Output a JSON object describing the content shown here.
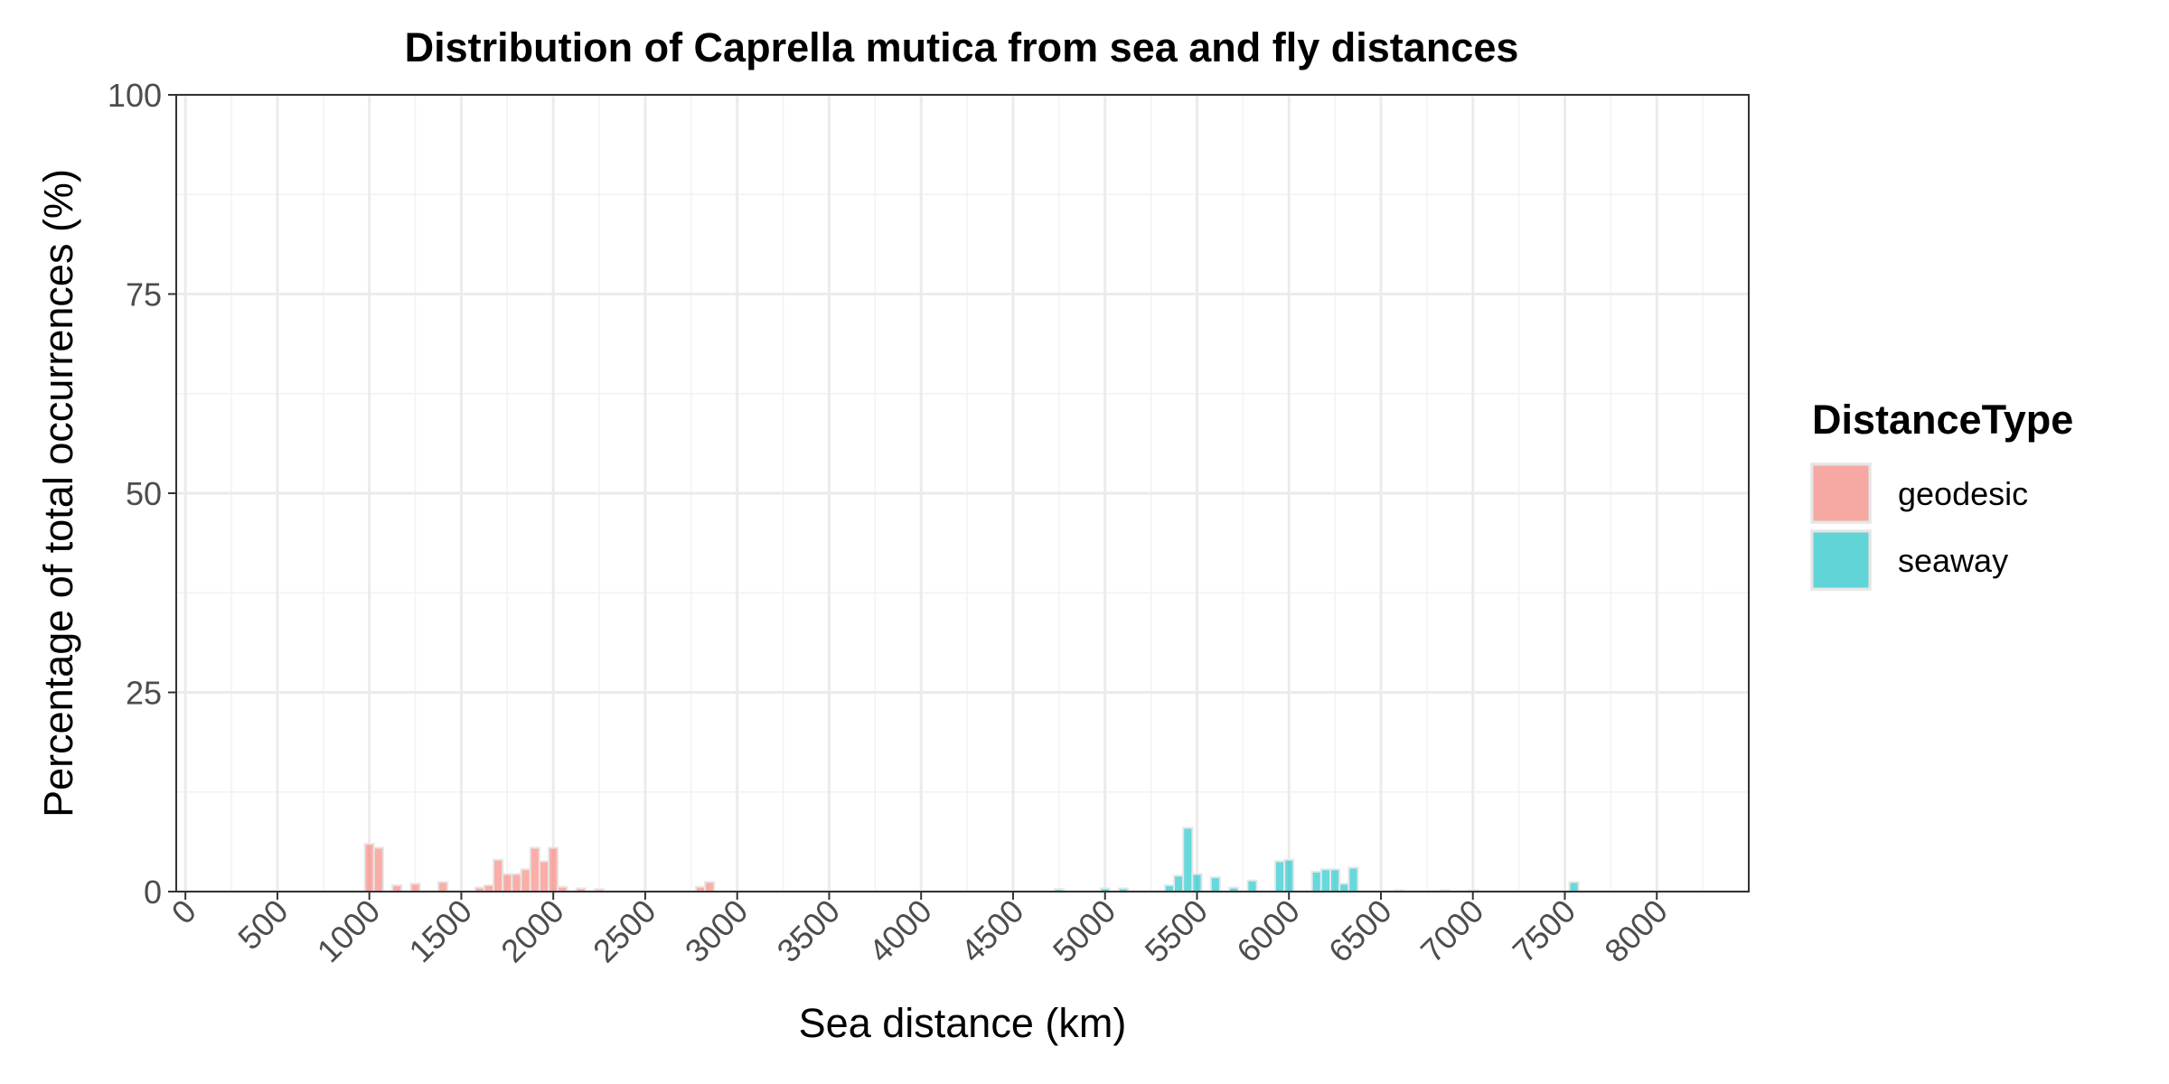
{
  "chart_data": {
    "type": "bar",
    "title": "Distribution of Caprella mutica from sea and fly distances",
    "xlabel": "Sea distance (km)",
    "ylabel": "Percentage of total occurrences (%)",
    "xlim": [
      0,
      8500
    ],
    "ylim": [
      0,
      100
    ],
    "bin_width": 50,
    "x_ticks": [
      "0",
      "500",
      "1000",
      "1500",
      "2000",
      "2500",
      "3000",
      "3500",
      "4000",
      "4500",
      "5000",
      "5500",
      "6000",
      "6500",
      "7000",
      "7500",
      "8000"
    ],
    "y_ticks": [
      "0",
      "25",
      "50",
      "75",
      "100"
    ],
    "grid": true,
    "legend_position": "right",
    "legend_title": "DistanceType",
    "series": [
      {
        "name": "geodesic",
        "color": "#f8766d",
        "x": [
          1000,
          1050,
          1150,
          1250,
          1400,
          1600,
          1650,
          1700,
          1750,
          1800,
          1850,
          1900,
          1950,
          2000,
          2050,
          2150,
          2250,
          2800,
          2850
        ],
        "values": [
          6.0,
          5.5,
          0.8,
          1.0,
          1.2,
          0.5,
          0.8,
          4.0,
          2.2,
          2.2,
          2.8,
          5.5,
          3.8,
          5.5,
          0.6,
          0.4,
          0.3,
          0.6,
          1.2
        ]
      },
      {
        "name": "seaway",
        "color": "#00bfc4",
        "x": [
          4750,
          5000,
          5100,
          5350,
          5400,
          5450,
          5500,
          5600,
          5700,
          5800,
          5950,
          6000,
          6150,
          6200,
          6250,
          6300,
          6350,
          6600,
          6850,
          7000,
          7550
        ],
        "values": [
          0.3,
          0.4,
          0.4,
          0.8,
          2.0,
          8.0,
          2.2,
          1.8,
          0.5,
          1.4,
          3.8,
          4.0,
          2.5,
          2.8,
          2.8,
          1.0,
          3.0,
          0.2,
          0.2,
          0.2,
          1.2
        ]
      }
    ]
  }
}
